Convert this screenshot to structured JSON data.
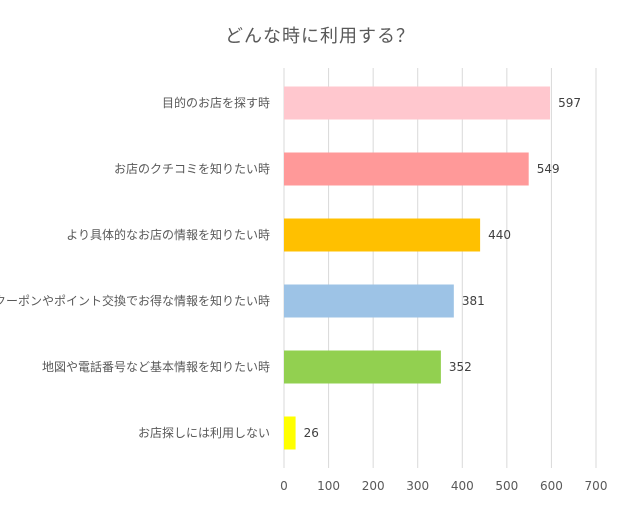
{
  "chart_data": {
    "type": "bar",
    "orientation": "horizontal",
    "title": "どんな時に利用する？",
    "categories": [
      "目的のお店を探す時",
      "お店のクチコミを知りたい時",
      "より具体的なお店の情報を知りたい時",
      "クーポンやポイント交換でお得な情報を知りたい時",
      "地図や電話番号など基本情報を知りたい時",
      "お店探しには利用しない"
    ],
    "values": [
      597,
      549,
      440,
      381,
      352,
      26
    ],
    "colors": [
      "#ffc7ce",
      "#ff9999",
      "#ffc000",
      "#9dc3e6",
      "#92d050",
      "#ffff00"
    ],
    "xlim": [
      0,
      700
    ],
    "ticks": [
      0,
      100,
      200,
      300,
      400,
      500,
      600,
      700
    ],
    "grid": true,
    "gridColor": "#d9d9d9",
    "legend": "none"
  }
}
